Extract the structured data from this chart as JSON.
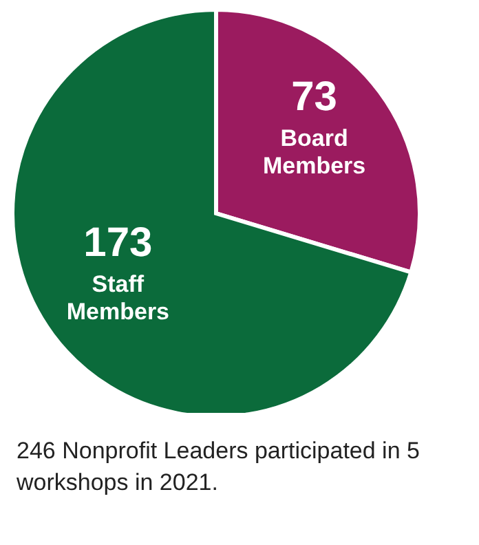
{
  "chart_data": {
    "type": "pie",
    "categories": [
      "Board Members",
      "Staff Members"
    ],
    "values": [
      73,
      173
    ],
    "colors": [
      "#9b1b5f",
      "#0b6b3b"
    ],
    "data_labels": true,
    "legend": false,
    "annotations": [
      "246 Nonprofit Leaders participated in 5 workshops in 2021."
    ]
  }
}
